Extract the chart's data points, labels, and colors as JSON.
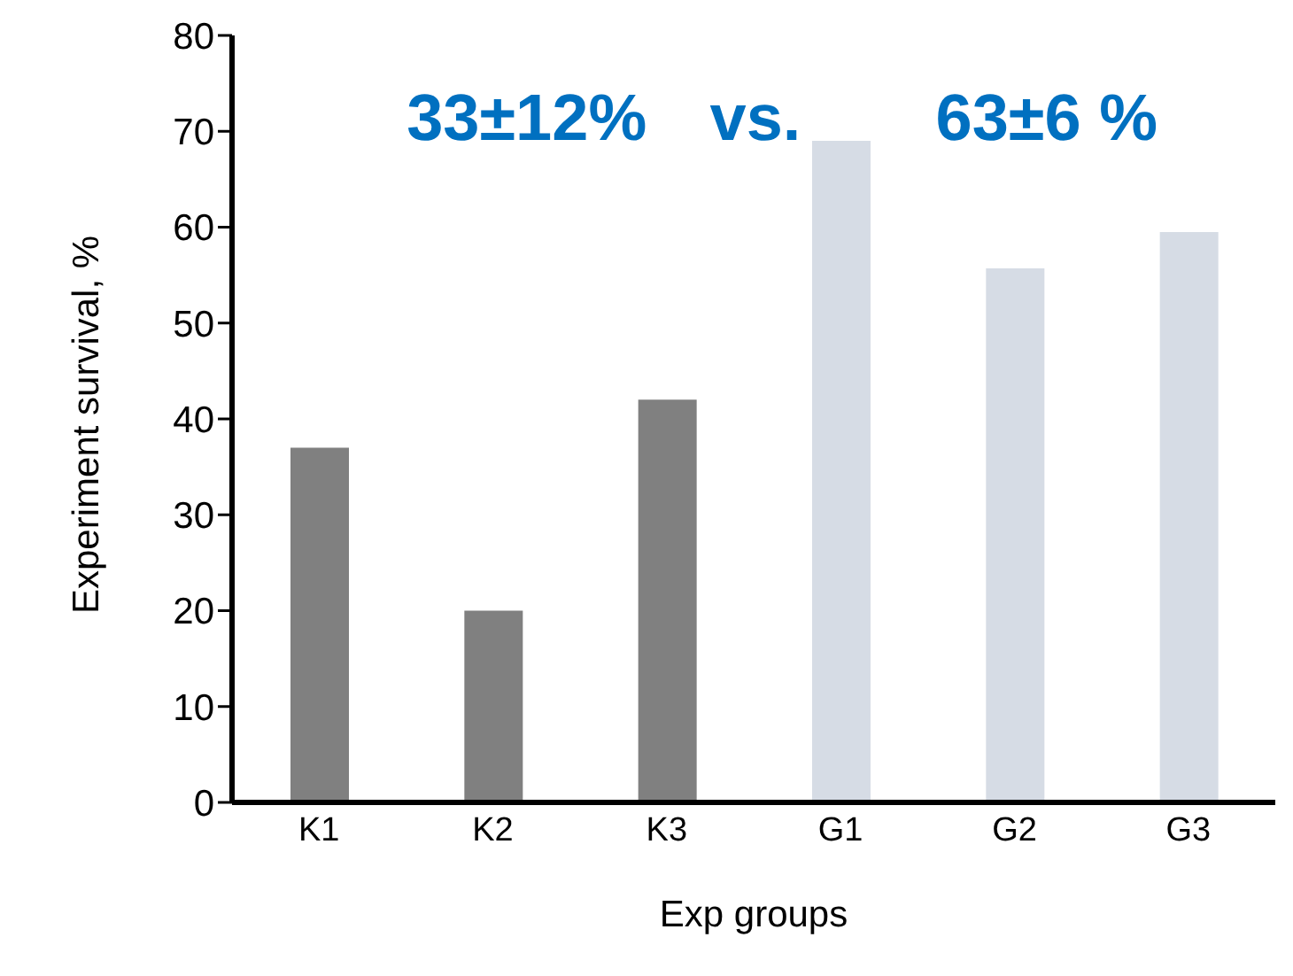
{
  "chart_data": {
    "type": "bar",
    "xlabel": "Exp groups",
    "ylabel": "Experiment survival, %",
    "categories": [
      "K1",
      "K2",
      "K3",
      "G1",
      "G2",
      "G3"
    ],
    "values": [
      37,
      20,
      42,
      69,
      55.7,
      59.5
    ],
    "colors": [
      "#808080",
      "#808080",
      "#808080",
      "#d6dce5",
      "#d6dce5",
      "#d6dce5"
    ],
    "ylim": [
      0,
      80
    ],
    "yticks": [
      0,
      10,
      20,
      30,
      40,
      50,
      60,
      70,
      80
    ],
    "grid": false,
    "legend": false,
    "annotations": [
      "33±12%",
      "vs.",
      "63±6 %"
    ]
  }
}
